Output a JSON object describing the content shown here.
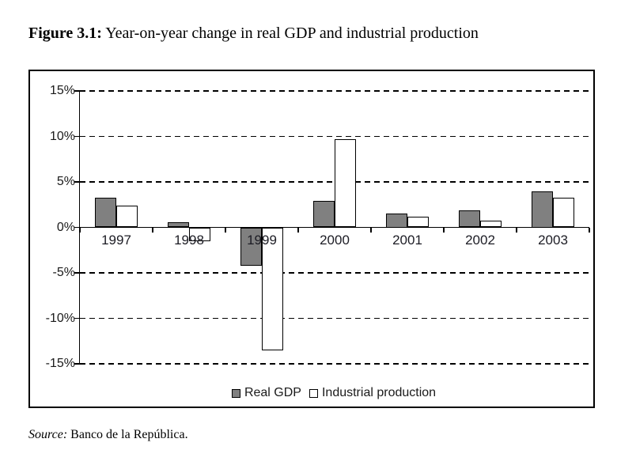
{
  "title": {
    "label": "Figure 3.1:",
    "text": " Year-on-year change in real GDP and industrial production"
  },
  "source": {
    "label": "Source:",
    "text": " Banco de la República."
  },
  "chart_data": {
    "type": "bar",
    "title": "Year-on-year change in real GDP and industrial production",
    "categories": [
      "1997",
      "1998",
      "1999",
      "2000",
      "2001",
      "2002",
      "2003"
    ],
    "series": [
      {
        "name": "Real GDP",
        "fill": "#808080",
        "values": [
          3.3,
          0.6,
          -4.2,
          2.9,
          1.5,
          1.9,
          4.0
        ]
      },
      {
        "name": "Industrial production",
        "fill": "#ffffff",
        "values": [
          2.4,
          -1.5,
          -13.5,
          9.7,
          1.2,
          0.7,
          3.3
        ]
      }
    ],
    "unit": "%",
    "ylim": [
      -15,
      15
    ],
    "y_ticks": [
      {
        "value": 15,
        "label": "15%"
      },
      {
        "value": 10,
        "label": "10%"
      },
      {
        "value": 5,
        "label": "5%"
      },
      {
        "value": 0,
        "label": "0%"
      },
      {
        "value": -5,
        "label": "-5%"
      },
      {
        "value": -10,
        "label": "-10%"
      },
      {
        "value": -15,
        "label": "-15%"
      }
    ],
    "grid": "horizontal-dashed",
    "legend_position": "bottom-center"
  },
  "colors": {
    "bar_border": "#000000",
    "axis": "#000000",
    "gray_fill": "#808080",
    "white_fill": "#ffffff",
    "text": "#1a1a1a"
  }
}
